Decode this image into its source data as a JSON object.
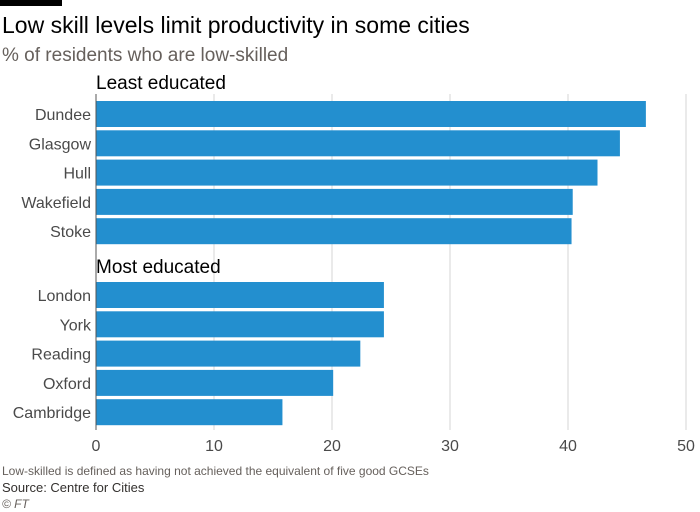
{
  "chart_data": {
    "type": "bar",
    "orientation": "horizontal",
    "title": "Low skill levels limit productivity in some cities",
    "subtitle": "% of residents who are low-skilled",
    "xlim": [
      0,
      50
    ],
    "xticks": [
      0,
      10,
      20,
      30,
      40,
      50
    ],
    "grid": true,
    "bar_color": "#238fcf",
    "groups": [
      {
        "label": "Least educated",
        "categories": [
          "Dundee",
          "Glasgow",
          "Hull",
          "Wakefield",
          "Stoke"
        ],
        "values": [
          46.6,
          44.4,
          42.5,
          40.4,
          40.3
        ]
      },
      {
        "label": "Most educated",
        "categories": [
          "London",
          "York",
          "Reading",
          "Oxford",
          "Cambridge"
        ],
        "values": [
          24.4,
          24.4,
          22.4,
          20.1,
          15.8
        ]
      }
    ]
  },
  "notes": {
    "footnote": "Low-skilled is defined as having not achieved the equivalent of five good GCSEs",
    "source": "Source: Centre for Cities",
    "credit": "© FT"
  }
}
